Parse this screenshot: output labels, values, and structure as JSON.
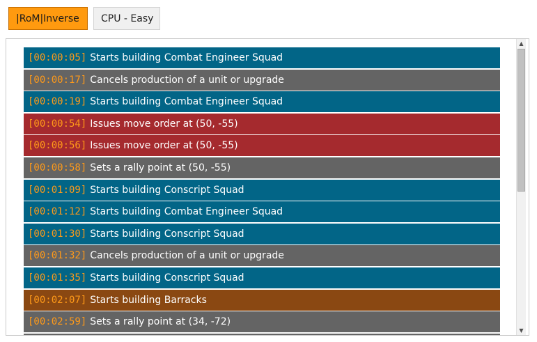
{
  "tabs": [
    {
      "label": "|RoM|Inverse",
      "active": true
    },
    {
      "label": "CPU - Easy",
      "active": false
    }
  ],
  "colors": {
    "active_tab": "#ff9a0f",
    "row_build": "#026587",
    "row_cancel": "#646464",
    "row_move": "#a52a2e",
    "row_structure": "#8a4812",
    "timestamp": "#ff9a19"
  },
  "log": [
    {
      "time": "[00:00:05]",
      "text": "Starts building Combat Engineer Squad",
      "kind": "blue"
    },
    {
      "time": "[00:00:17]",
      "text": "Cancels production of a unit or upgrade",
      "kind": "gray"
    },
    {
      "time": "[00:00:19]",
      "text": "Starts building Combat Engineer Squad",
      "kind": "blue"
    },
    {
      "time": "[00:00:54]",
      "text": "Issues move order at (50, -55)",
      "kind": "red"
    },
    {
      "time": "[00:00:56]",
      "text": "Issues move order at (50, -55)",
      "kind": "red"
    },
    {
      "time": "[00:00:58]",
      "text": "Sets a rally point at (50, -55)",
      "kind": "gray"
    },
    {
      "time": "[00:01:09]",
      "text": "Starts building Conscript Squad",
      "kind": "blue"
    },
    {
      "time": "[00:01:12]",
      "text": "Starts building Combat Engineer Squad",
      "kind": "blue"
    },
    {
      "time": "[00:01:30]",
      "text": "Starts building Conscript Squad",
      "kind": "blue"
    },
    {
      "time": "[00:01:32]",
      "text": "Cancels production of a unit or upgrade",
      "kind": "gray"
    },
    {
      "time": "[00:01:35]",
      "text": "Starts building Conscript Squad",
      "kind": "blue"
    },
    {
      "time": "[00:02:07]",
      "text": "Starts building Barracks",
      "kind": "brown"
    },
    {
      "time": "[00:02:59]",
      "text": "Sets a rally point at (34, -72)",
      "kind": "gray"
    },
    {
      "time": "",
      "text": "",
      "kind": "gray"
    }
  ],
  "icons": {
    "scroll_up": "scroll-up-arrow-icon",
    "scroll_down": "scroll-down-arrow-icon"
  }
}
